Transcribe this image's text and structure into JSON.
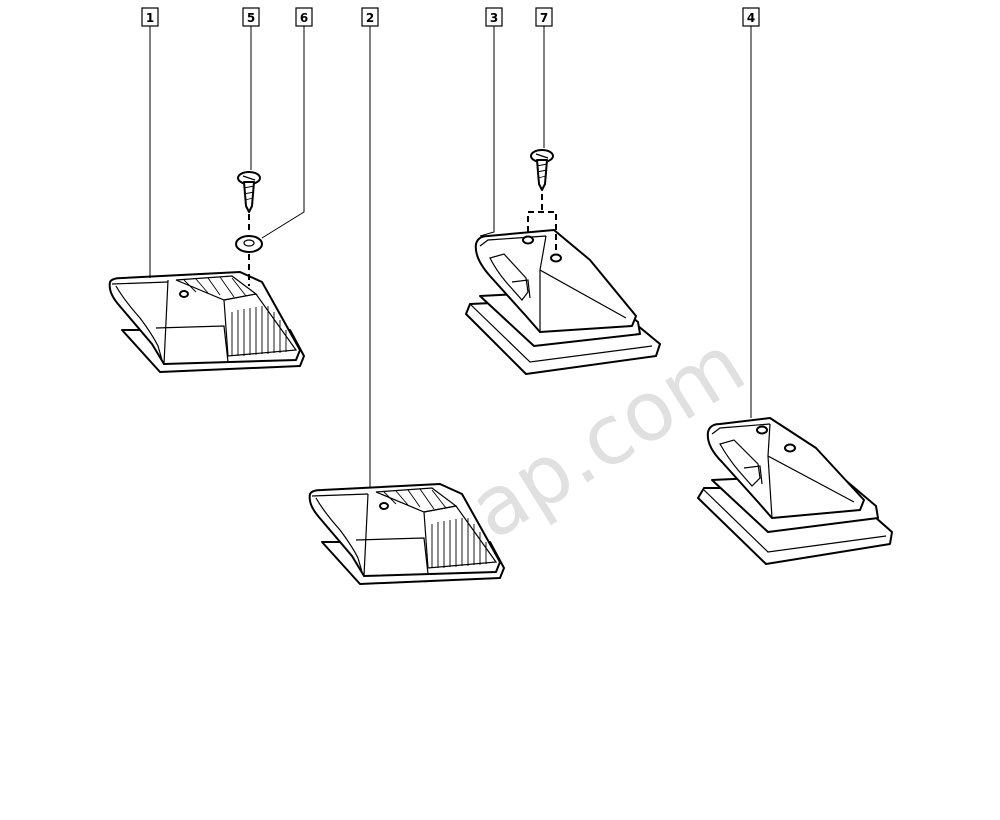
{
  "callouts": [
    {
      "id": "1",
      "label": "1"
    },
    {
      "id": "5",
      "label": "5"
    },
    {
      "id": "6",
      "label": "6"
    },
    {
      "id": "2",
      "label": "2"
    },
    {
      "id": "3",
      "label": "3"
    },
    {
      "id": "7",
      "label": "7"
    },
    {
      "id": "4",
      "label": "4"
    }
  ],
  "watermark": "7zap.com",
  "icons": {
    "screw": "screw-icon",
    "washer": "washer-icon",
    "light_ribbed": "ribbed-light-icon",
    "light_plain": "plain-light-housing-icon"
  }
}
